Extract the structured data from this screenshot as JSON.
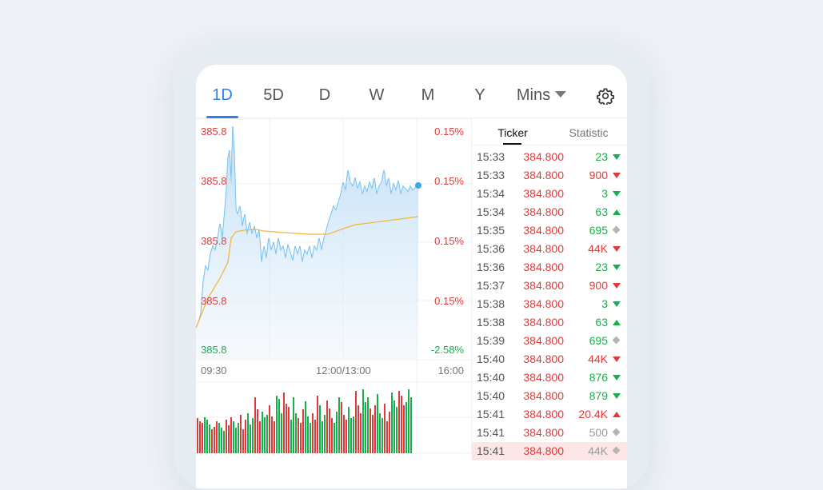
{
  "tabs": [
    {
      "label": "1D",
      "active": true
    },
    {
      "label": "5D"
    },
    {
      "label": "D"
    },
    {
      "label": "W"
    },
    {
      "label": "M"
    },
    {
      "label": "Y"
    },
    {
      "label": "Mins"
    }
  ],
  "settings_icon": "gear-icon",
  "panel_tabs": {
    "ticker": "Ticker",
    "statistic": "Statistic"
  },
  "chart": {
    "left_labels": [
      "385.8",
      "385.8",
      "385.8",
      "385.8",
      "385.8"
    ],
    "right_labels": [
      "0.15%",
      "0.15%",
      "0.15%",
      "0.15%",
      "-2.58%"
    ],
    "time_labels": [
      "09:30",
      "12:00/13:00",
      "16:00"
    ]
  },
  "colors": {
    "up": "#18b04a",
    "down": "#e23a3a",
    "accent": "#2f7ff0",
    "price_line": "#5ab5ef",
    "avg_line": "#f4b63f"
  },
  "ticks": [
    {
      "time": "15:33",
      "price": "384.800",
      "vol": "23",
      "dir": "down-green"
    },
    {
      "time": "15:33",
      "price": "384.800",
      "vol": "900",
      "dir": "down-red"
    },
    {
      "time": "15:34",
      "price": "384.800",
      "vol": "3",
      "dir": "down-green"
    },
    {
      "time": "15:34",
      "price": "384.800",
      "vol": "63",
      "dir": "up-green"
    },
    {
      "time": "15:35",
      "price": "384.800",
      "vol": "695",
      "dir": "neutral"
    },
    {
      "time": "15:36",
      "price": "384.800",
      "vol": "44K",
      "dir": "down-red"
    },
    {
      "time": "15:36",
      "price": "384.800",
      "vol": "23",
      "dir": "down-green"
    },
    {
      "time": "15:37",
      "price": "384.800",
      "vol": "900",
      "dir": "down-red"
    },
    {
      "time": "15:38",
      "price": "384.800",
      "vol": "3",
      "dir": "down-green"
    },
    {
      "time": "15:38",
      "price": "384.800",
      "vol": "63",
      "dir": "up-green"
    },
    {
      "time": "15:39",
      "price": "384.800",
      "vol": "695",
      "dir": "neutral"
    },
    {
      "time": "15:40",
      "price": "384.800",
      "vol": "44K",
      "dir": "down-red"
    },
    {
      "time": "15:40",
      "price": "384.800",
      "vol": "876",
      "dir": "down-green"
    },
    {
      "time": "15:40",
      "price": "384.800",
      "vol": "879",
      "dir": "down-green"
    },
    {
      "time": "15:41",
      "price": "384.800",
      "vol": "20.4K",
      "dir": "up-red"
    },
    {
      "time": "15:41",
      "price": "384.800",
      "vol": "500",
      "dir": "neutral-gray"
    },
    {
      "time": "15:41",
      "price": "384.800",
      "vol": "44K",
      "dir": "neutral-gray"
    }
  ]
}
